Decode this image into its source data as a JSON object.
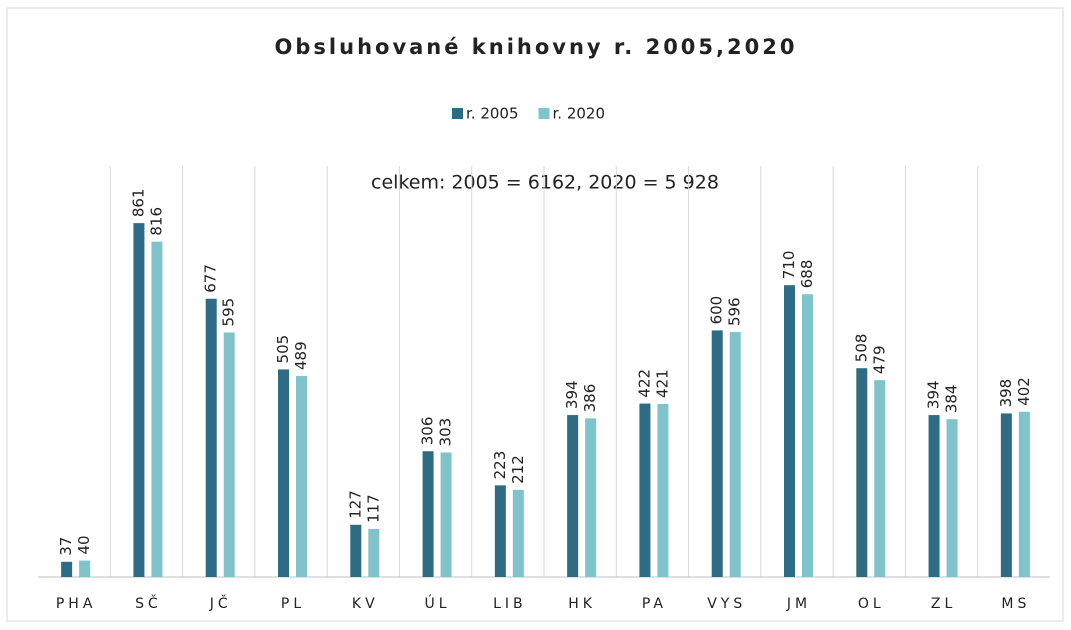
{
  "chart_data": {
    "type": "bar",
    "title": "Obsluhované knihovny r. 2005,2020",
    "annotation": "celkem: 2005 = 6162, 2020 = 5 928",
    "categories": [
      "PHA",
      "SČ",
      "JČ",
      "PL",
      "KV",
      "ÚL",
      "LIB",
      "HK",
      "PA",
      "VYS",
      "JM",
      "OL",
      "ZL",
      "MS"
    ],
    "series": [
      {
        "name": "r. 2005",
        "color": "#2e6b84",
        "values": [
          37,
          861,
          677,
          505,
          127,
          306,
          223,
          394,
          422,
          600,
          710,
          508,
          394,
          398
        ]
      },
      {
        "name": "r. 2020",
        "color": "#7fc4cb",
        "values": [
          40,
          816,
          595,
          489,
          117,
          303,
          212,
          386,
          421,
          596,
          688,
          479,
          384,
          402
        ]
      }
    ],
    "ylim": [
      0,
      1000
    ],
    "grid": true
  }
}
